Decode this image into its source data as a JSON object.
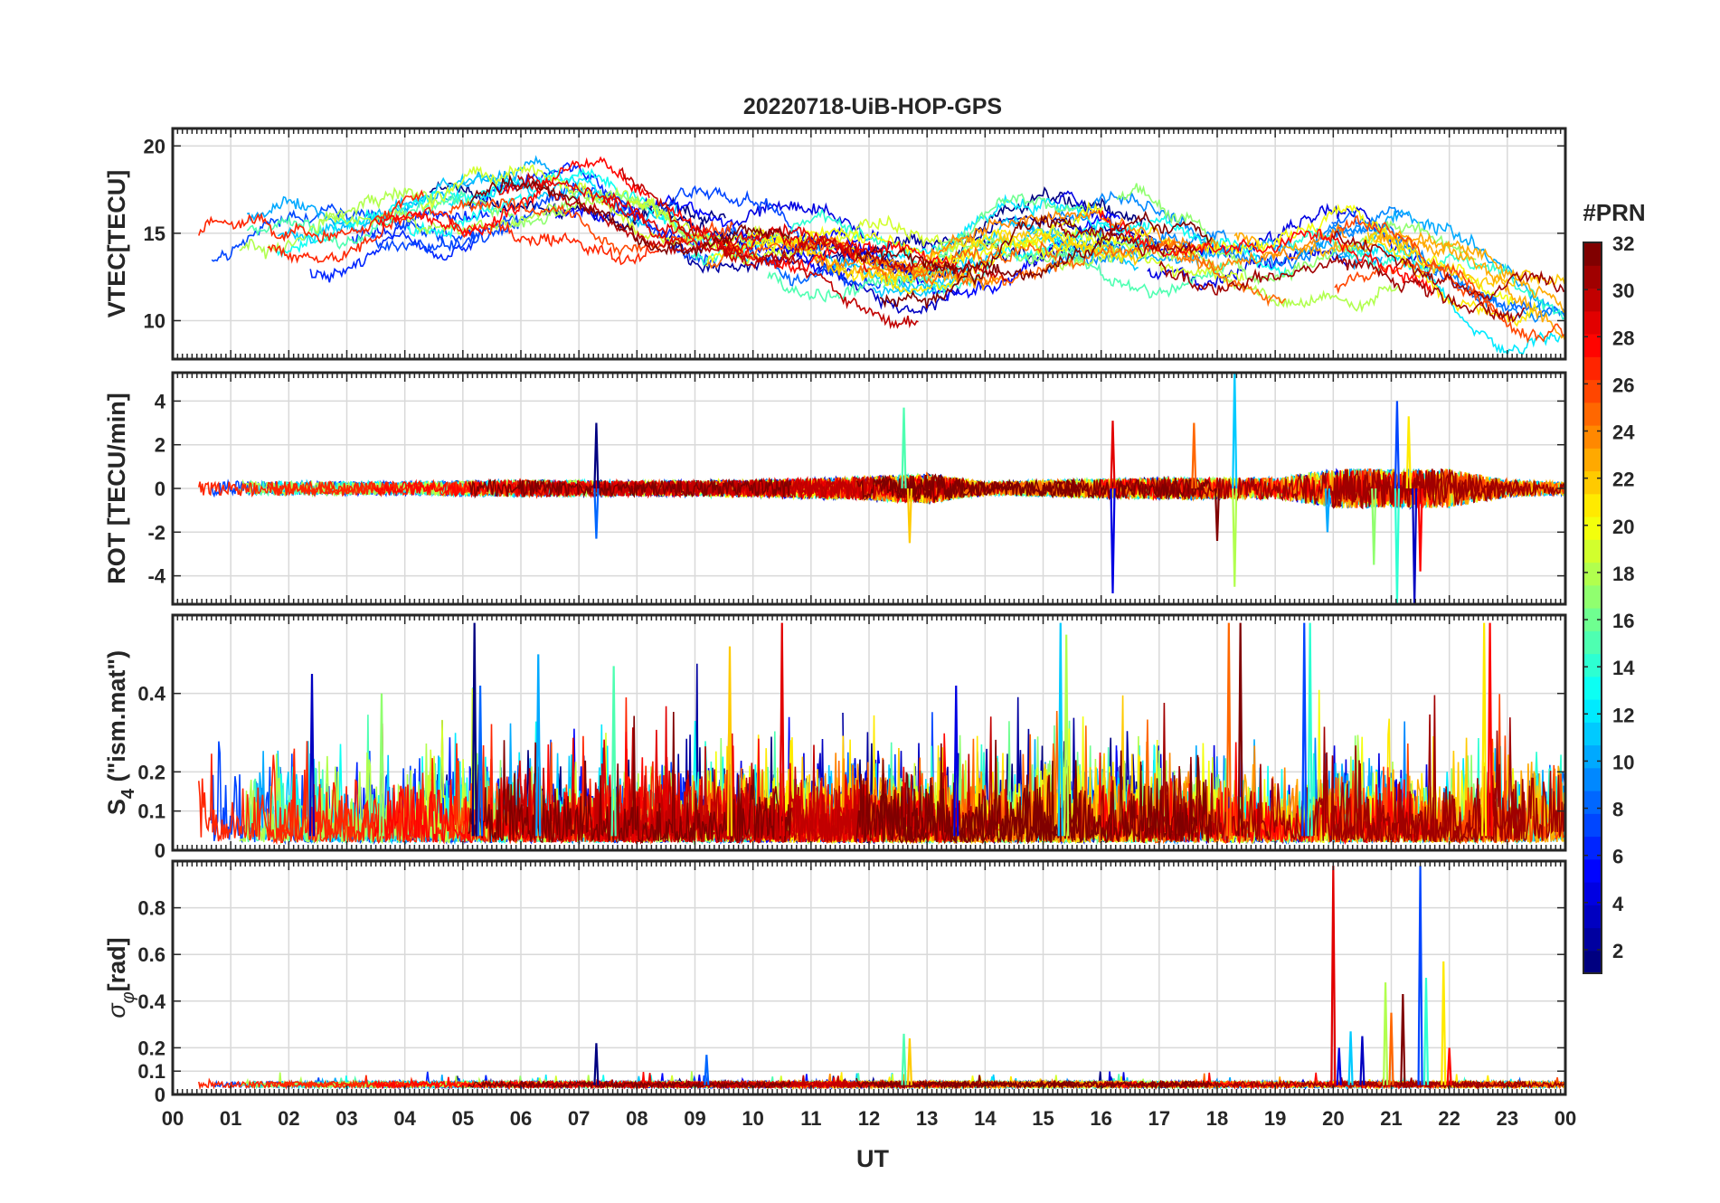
{
  "chart_data": {
    "type": "line",
    "title": "20220718-UiB-HOP-GPS",
    "xlabel": "UT",
    "x_range": [
      0,
      24
    ],
    "x_tick_labels": [
      "00",
      "01",
      "02",
      "03",
      "04",
      "05",
      "06",
      "07",
      "08",
      "09",
      "10",
      "11",
      "12",
      "13",
      "14",
      "15",
      "16",
      "17",
      "18",
      "19",
      "20",
      "21",
      "22",
      "23",
      "00"
    ],
    "grid": true,
    "colorbar": {
      "label": "#PRN",
      "range": [
        1,
        32
      ],
      "colormap": "jet",
      "tick_labels": [
        "2",
        "4",
        "6",
        "8",
        "10",
        "12",
        "14",
        "16",
        "18",
        "20",
        "22",
        "24",
        "26",
        "28",
        "30",
        "32"
      ],
      "placement": "right"
    },
    "panels": [
      {
        "key": "vtec",
        "ylabel": "VTEC[TECU]",
        "ylim": [
          7.8,
          21
        ],
        "yticks": [
          10,
          15,
          20
        ],
        "ytick_labels": [
          "10",
          "15",
          "20"
        ],
        "profile": [
          [
            0,
            12.5
          ],
          [
            1,
            14
          ],
          [
            2,
            14.5
          ],
          [
            3,
            14.5
          ],
          [
            4,
            15.5
          ],
          [
            5,
            16
          ],
          [
            6,
            16.5
          ],
          [
            7,
            17
          ],
          [
            8,
            16
          ],
          [
            9,
            15
          ],
          [
            10,
            14.5
          ],
          [
            11,
            14
          ],
          [
            12,
            13.5
          ],
          [
            13,
            13
          ],
          [
            14,
            14
          ],
          [
            15,
            15
          ],
          [
            16,
            15.5
          ],
          [
            17,
            14.5
          ],
          [
            18,
            13.5
          ],
          [
            19,
            13
          ],
          [
            20,
            14
          ],
          [
            21,
            14
          ],
          [
            22,
            13
          ],
          [
            23,
            11
          ],
          [
            24,
            10
          ]
        ],
        "noise": 0.5,
        "wander": 2.6
      },
      {
        "key": "rot",
        "ylabel": "ROT [TECU/min]",
        "ylim": [
          -5.3,
          5.3
        ],
        "yticks": [
          -4,
          -2,
          0,
          2,
          4
        ],
        "ytick_labels": [
          "-4",
          "-2",
          "0",
          "2",
          "4"
        ],
        "profile": [
          [
            0,
            0
          ],
          [
            24,
            0
          ]
        ],
        "noise_profile": [
          [
            0,
            0.35
          ],
          [
            4,
            0.3
          ],
          [
            6,
            0.4
          ],
          [
            8,
            0.35
          ],
          [
            10,
            0.4
          ],
          [
            12,
            0.55
          ],
          [
            13,
            0.7
          ],
          [
            14,
            0.3
          ],
          [
            16,
            0.45
          ],
          [
            17,
            0.5
          ],
          [
            19,
            0.5
          ],
          [
            20,
            0.9
          ],
          [
            22,
            0.9
          ],
          [
            23,
            0.4
          ],
          [
            24,
            0.3
          ]
        ],
        "spikes": [
          [
            7.3,
            3.0
          ],
          [
            7.3,
            -2.3
          ],
          [
            12.6,
            3.7
          ],
          [
            12.7,
            -2.5
          ],
          [
            16.2,
            3.1
          ],
          [
            16.2,
            -4.8
          ],
          [
            18.3,
            5.4
          ],
          [
            18.3,
            -4.5
          ],
          [
            17.6,
            3.0
          ],
          [
            18.0,
            -2.4
          ],
          [
            21.1,
            4.0
          ],
          [
            21.1,
            -5.3
          ],
          [
            21.3,
            3.3
          ],
          [
            21.5,
            -3.8
          ],
          [
            21.4,
            -5.3
          ],
          [
            19.9,
            -2.0
          ],
          [
            20.7,
            -3.5
          ]
        ],
        "wander": 0
      },
      {
        "key": "s4",
        "ylabel": "S4 (\"ism.mat\")",
        "ylabel_main": "S",
        "ylabel_sub": "4",
        "ylabel_rest": " (\"ism.mat\")",
        "ylim": [
          0,
          0.6
        ],
        "yticks": [
          0,
          0.1,
          0.2,
          0.4
        ],
        "ytick_labels": [
          "0",
          "0.1",
          "0.2",
          "0.4"
        ],
        "profile": [
          [
            0,
            0.12
          ],
          [
            24,
            0.12
          ]
        ],
        "noise": 0.08,
        "spikes": [
          [
            5.2,
            0.58
          ],
          [
            5.3,
            0.42
          ],
          [
            7.6,
            0.47
          ],
          [
            9.6,
            0.52
          ],
          [
            10.5,
            0.58
          ],
          [
            13.5,
            0.42
          ],
          [
            15.3,
            0.58
          ],
          [
            15.4,
            0.55
          ],
          [
            18.2,
            0.58
          ],
          [
            18.4,
            0.58
          ],
          [
            19.5,
            0.58
          ],
          [
            19.6,
            0.58
          ],
          [
            22.6,
            0.58
          ],
          [
            22.7,
            0.58
          ],
          [
            2.4,
            0.45
          ],
          [
            6.3,
            0.5
          ],
          [
            3.6,
            0.4
          ]
        ],
        "wander": 0
      },
      {
        "key": "sigma",
        "ylabel": "σφ[rad]",
        "ylabel_main": "σ",
        "ylabel_sub": "φ",
        "ylabel_rest": "[rad]",
        "ylim": [
          0,
          1.0
        ],
        "yticks": [
          0,
          0.1,
          0.2,
          0.4,
          0.6,
          0.8
        ],
        "ytick_labels": [
          "0",
          "0.1",
          "0.2",
          "0.4",
          "0.6",
          "0.8"
        ],
        "profile": [
          [
            0,
            0.04
          ],
          [
            24,
            0.04
          ]
        ],
        "noise": 0.012,
        "spikes": [
          [
            7.3,
            0.22
          ],
          [
            9.2,
            0.17
          ],
          [
            12.6,
            0.26
          ],
          [
            12.7,
            0.24
          ],
          [
            20.0,
            0.98
          ],
          [
            20.1,
            0.2
          ],
          [
            20.3,
            0.27
          ],
          [
            20.9,
            0.48
          ],
          [
            21.0,
            0.35
          ],
          [
            21.2,
            0.43
          ],
          [
            21.5,
            0.98
          ],
          [
            21.6,
            0.5
          ],
          [
            21.9,
            0.57
          ],
          [
            22.0,
            0.2
          ],
          [
            20.5,
            0.25
          ]
        ],
        "wander": 0
      }
    ]
  }
}
